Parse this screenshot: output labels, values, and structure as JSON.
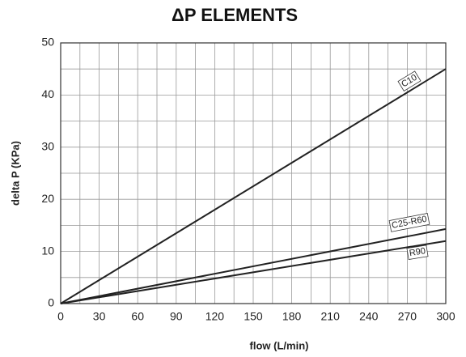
{
  "chart_data": {
    "type": "line",
    "title": "ΔP ELEMENTS",
    "xlabel": "flow (L/min)",
    "ylabel": "delta P (KPa)",
    "xlim": [
      0,
      300
    ],
    "ylim": [
      0,
      50
    ],
    "xticks": [
      0,
      30,
      60,
      90,
      120,
      150,
      180,
      210,
      240,
      270,
      300
    ],
    "yticks": [
      0,
      10,
      20,
      30,
      40,
      50
    ],
    "xminorticks": [
      15,
      45,
      75,
      105,
      135,
      165,
      195,
      225,
      255,
      285
    ],
    "yminorticks": [
      5,
      15,
      25,
      35,
      45
    ],
    "grid": true,
    "x": [
      0,
      300
    ],
    "series": [
      {
        "name": "C10",
        "color": "#222222",
        "values": [
          0,
          45
        ]
      },
      {
        "name": "C25-R60",
        "color": "#222222",
        "values": [
          0,
          14.3
        ]
      },
      {
        "name": "R90",
        "color": "#222222",
        "values": [
          0,
          12
        ]
      }
    ]
  }
}
